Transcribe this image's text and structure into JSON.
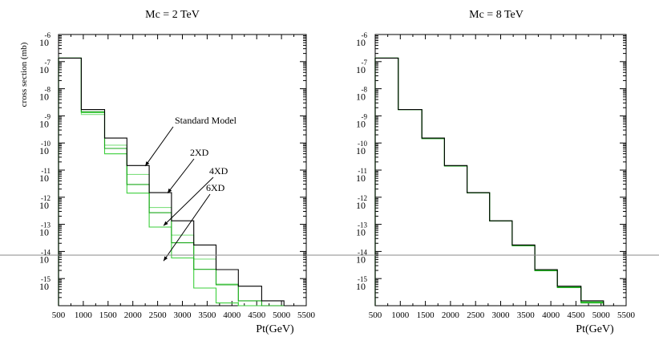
{
  "chart_data": [
    {
      "type": "line",
      "step": true,
      "title": "Mc = 2 TeV",
      "xlabel": "Pt(GeV)",
      "ylabel": "cross section (mb)",
      "xlim": [
        500,
        5500
      ],
      "ylim_exp": [
        -16,
        -6
      ],
      "x_ticks": [
        "500",
        "1000",
        "1500",
        "2000",
        "2500",
        "3000",
        "3500",
        "4000",
        "4500",
        "5000",
        "5500"
      ],
      "y_ticks": [
        {
          "base": "10",
          "exp": "-6"
        },
        {
          "base": "10",
          "exp": "-7"
        },
        {
          "base": "10",
          "exp": "-8"
        },
        {
          "base": "10",
          "exp": "-9"
        },
        {
          "base": "10",
          "exp": "-10"
        },
        {
          "base": "10",
          "exp": "-11"
        },
        {
          "base": "10",
          "exp": "-12"
        },
        {
          "base": "10",
          "exp": "-13"
        },
        {
          "base": "10",
          "exp": "-14"
        },
        {
          "base": "10",
          "exp": "-15"
        }
      ],
      "bin_edges": [
        500,
        960,
        1430,
        1880,
        2330,
        2780,
        3230,
        3680,
        4130,
        4600,
        5050
      ],
      "series": [
        {
          "name": "Standard Model",
          "color": "#000000",
          "log10_values": [
            -6.87,
            -8.77,
            -9.82,
            -10.83,
            -11.83,
            -12.87,
            -13.76,
            -14.67,
            -15.28,
            -15.82
          ]
        },
        {
          "name": "2XD",
          "color": "#1aa81a",
          "log10_values": [
            -6.87,
            -8.85,
            -10.2,
            -11.53,
            -12.57,
            -13.68,
            -14.66,
            -15.23,
            -15.82,
            -16.0
          ]
        },
        {
          "name": "4XD",
          "color": "#3bcf3b",
          "log10_values": [
            -6.87,
            -8.88,
            -10.4,
            -11.85,
            -13.1,
            -14.24,
            -15.35,
            -15.9,
            -16.0,
            -16.0
          ]
        },
        {
          "name": "6XD",
          "color": "#80e080",
          "log10_values": [
            -6.87,
            -8.95,
            -10.08,
            -11.16,
            -12.38,
            -13.4,
            -14.28,
            -15.2,
            -16.0,
            -16.0
          ]
        }
      ],
      "annotations": [
        {
          "label": "Standard Model",
          "target_x": 2250,
          "target_log10": -10.85
        },
        {
          "label": "2XD",
          "target_x": 2700,
          "target_log10": -11.85
        },
        {
          "label": "4XD",
          "target_x": 2620,
          "target_log10": -13.05
        },
        {
          "label": "6XD",
          "target_x": 2620,
          "target_log10": -14.35
        }
      ]
    },
    {
      "type": "line",
      "step": true,
      "title": "Mc = 8 TeV",
      "xlabel": "Pt(GeV)",
      "ylabel": "",
      "xlim": [
        500,
        5500
      ],
      "ylim_exp": [
        -16,
        -6
      ],
      "x_ticks": [
        "500",
        "1000",
        "1500",
        "2000",
        "2500",
        "3000",
        "3500",
        "4000",
        "4500",
        "5000",
        "5500"
      ],
      "y_ticks": [
        {
          "base": "10",
          "exp": "-6"
        },
        {
          "base": "10",
          "exp": "-7"
        },
        {
          "base": "10",
          "exp": "-8"
        },
        {
          "base": "10",
          "exp": "-9"
        },
        {
          "base": "10",
          "exp": "-10"
        },
        {
          "base": "10",
          "exp": "-11"
        },
        {
          "base": "10",
          "exp": "-12"
        },
        {
          "base": "10",
          "exp": "-13"
        },
        {
          "base": "10",
          "exp": "-14"
        },
        {
          "base": "10",
          "exp": "-15"
        }
      ],
      "bin_edges": [
        500,
        960,
        1430,
        1880,
        2330,
        2780,
        3230,
        3680,
        4130,
        4600,
        5050
      ],
      "series": [
        {
          "name": "Standard Model",
          "color": "#000000",
          "log10_values": [
            -6.87,
            -8.77,
            -9.82,
            -10.83,
            -11.83,
            -12.87,
            -13.76,
            -14.67,
            -15.28,
            -15.82
          ]
        },
        {
          "name": "2XD",
          "color": "#1aa81a",
          "log10_values": [
            -6.87,
            -8.77,
            -9.84,
            -10.85,
            -11.84,
            -12.88,
            -13.79,
            -14.71,
            -15.33,
            -15.9
          ]
        },
        {
          "name": "4XD",
          "color": "#3bcf3b",
          "log10_values": [
            -6.87,
            -8.77,
            -9.82,
            -10.84,
            -11.84,
            -12.88,
            -13.78,
            -14.7,
            -15.31,
            -15.87
          ]
        },
        {
          "name": "6XD",
          "color": "#80e080",
          "log10_values": [
            -6.87,
            -8.77,
            -9.82,
            -10.84,
            -11.83,
            -12.87,
            -13.77,
            -14.69,
            -15.3,
            -15.85
          ]
        }
      ],
      "annotations": []
    }
  ]
}
